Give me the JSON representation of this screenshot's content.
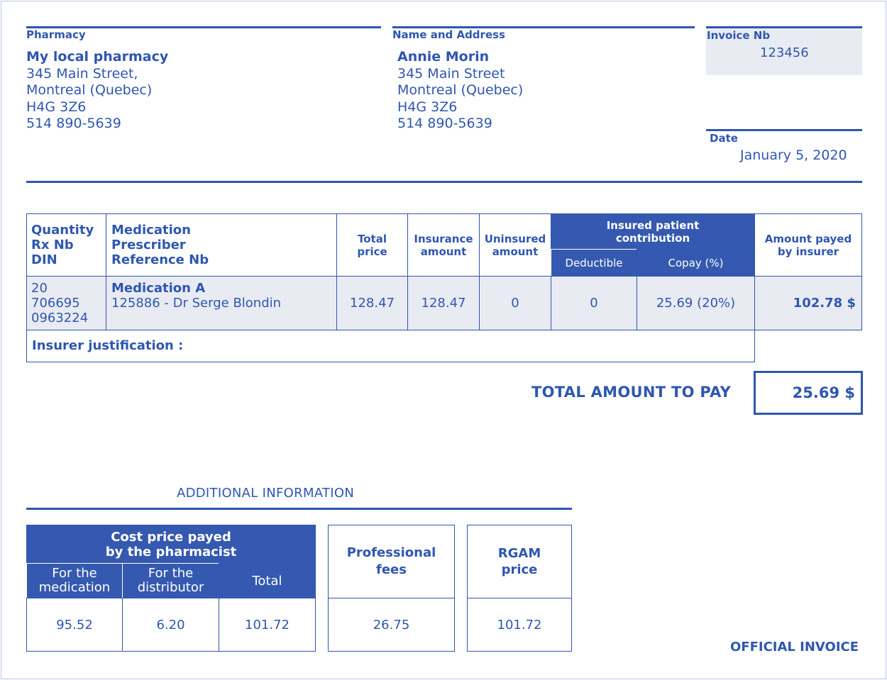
{
  "pharmacy": {
    "label": "Pharmacy",
    "name": "My local pharmacy",
    "street": "345 Main Street,",
    "city": "Montreal (Quebec)",
    "postal": "H4G 3Z6",
    "phone": "514 890-5639"
  },
  "customer": {
    "label": "Name and Address",
    "name": "Annie Morin",
    "street": "345 Main Street",
    "city": "Montreal (Quebec)",
    "postal": "H4G 3Z6",
    "phone": "514 890-5639"
  },
  "invoice": {
    "label": "Invoice Nb",
    "number": "123456"
  },
  "date": {
    "label": "Date",
    "value": "January 5, 2020"
  },
  "table": {
    "headers": {
      "col1_l1": "Quantity",
      "col1_l2": "Rx Nb",
      "col1_l3": "DIN",
      "col2_l1": "Medication",
      "col2_l2": "Prescriber",
      "col2_l3": "Reference Nb",
      "total_l1": "Total",
      "total_l2": "price",
      "insurance_l1": "Insurance",
      "insurance_l2": "amount",
      "uninsured_l1": "Uninsured",
      "uninsured_l2": "amount",
      "contribution_l1": "Insured patient",
      "contribution_l2": "contribution",
      "deductible": "Deductible",
      "copay": "Copay (%)",
      "insurer_l1": "Amount payed",
      "insurer_l2": "by insurer"
    },
    "row": {
      "quantity": "20",
      "rx": "706695",
      "din": "0963224",
      "medication": "Medication A",
      "prescriber": "125886 - Dr Serge Blondin",
      "total": "128.47",
      "insurance": "128.47",
      "uninsured": "0",
      "deductible": "0",
      "copay": "25.69 (20%)",
      "insurer": "102.78 $"
    },
    "justification_label": "Insurer justification :"
  },
  "total": {
    "label": "TOTAL AMOUNT TO PAY",
    "value": "25.69 $"
  },
  "additional": {
    "title": "ADDITIONAL INFORMATION",
    "cost_header_l1": "Cost price payed",
    "cost_header_l2": "by the pharmacist",
    "for_med_l1": "For the",
    "for_med_l2": "medication",
    "for_dist_l1": "For the",
    "for_dist_l2": "distributor",
    "total_label": "Total",
    "for_med_value": "95.52",
    "for_dist_value": "6.20",
    "total_value": "101.72",
    "prof_fees_l1": "Professional",
    "prof_fees_l2": "fees",
    "prof_fees_value": "26.75",
    "rgam_l1": "RGAM",
    "rgam_l2": "price",
    "rgam_value": "101.72"
  },
  "footer": {
    "official": "OFFICIAL INVOICE"
  }
}
